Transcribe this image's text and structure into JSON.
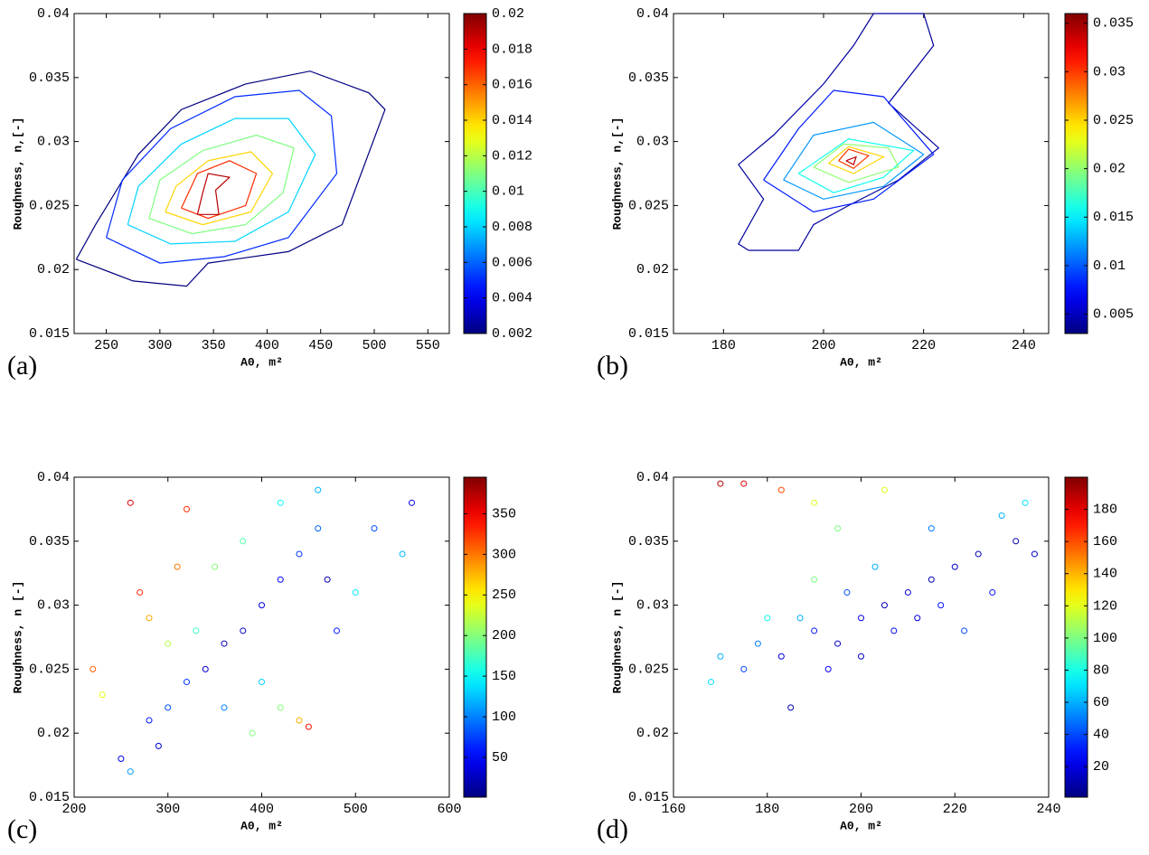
{
  "chart_data": [
    {
      "type": "contour",
      "label": "(a)",
      "xlabel": "A0, m²",
      "ylabel": "Roughness, n,[-]",
      "colormap": "jet",
      "xlim": [
        220,
        570
      ],
      "xticks": [
        250,
        300,
        350,
        400,
        450,
        500,
        550
      ],
      "ylim": [
        0.015,
        0.04
      ],
      "yticks": [
        0.015,
        0.02,
        0.025,
        0.03,
        0.035,
        0.04
      ],
      "clim": [
        0.002,
        0.02
      ],
      "cticks": [
        0.002,
        0.004,
        0.006,
        0.008,
        0.01,
        0.012,
        0.014,
        0.016,
        0.018,
        0.02
      ],
      "series": [
        {
          "level": 0.002,
          "x": [
            222,
            275,
            325,
            345,
            420,
            470,
            510,
            495,
            440,
            380,
            320,
            280,
            240,
            222
          ],
          "y": [
            0.0208,
            0.0191,
            0.0187,
            0.0205,
            0.0214,
            0.0235,
            0.0325,
            0.0338,
            0.0355,
            0.0345,
            0.0325,
            0.029,
            0.0235,
            0.0208
          ]
        },
        {
          "level": 0.005,
          "x": [
            250,
            300,
            360,
            420,
            465,
            460,
            430,
            370,
            310,
            265,
            250
          ],
          "y": [
            0.0225,
            0.0205,
            0.021,
            0.0225,
            0.0275,
            0.032,
            0.034,
            0.0335,
            0.031,
            0.027,
            0.0225
          ]
        },
        {
          "level": 0.008,
          "x": [
            270,
            310,
            370,
            420,
            445,
            420,
            370,
            320,
            280,
            270
          ],
          "y": [
            0.0235,
            0.022,
            0.0222,
            0.0245,
            0.029,
            0.0318,
            0.0318,
            0.0298,
            0.0265,
            0.0235
          ]
        },
        {
          "level": 0.011,
          "x": [
            290,
            330,
            380,
            415,
            425,
            390,
            340,
            300,
            290
          ],
          "y": [
            0.024,
            0.0228,
            0.0235,
            0.026,
            0.0295,
            0.0305,
            0.0293,
            0.027,
            0.024
          ]
        },
        {
          "level": 0.014,
          "x": [
            305,
            340,
            385,
            405,
            385,
            345,
            315,
            305
          ],
          "y": [
            0.0245,
            0.0235,
            0.0245,
            0.0275,
            0.0292,
            0.0285,
            0.0265,
            0.0245
          ]
        },
        {
          "level": 0.017,
          "x": [
            320,
            345,
            380,
            390,
            365,
            335,
            320
          ],
          "y": [
            0.0248,
            0.024,
            0.025,
            0.0275,
            0.0285,
            0.0275,
            0.0248
          ]
        },
        {
          "level": 0.019,
          "x": [
            335,
            355,
            352,
            365,
            345,
            340,
            335
          ],
          "y": [
            0.0243,
            0.0243,
            0.0262,
            0.0272,
            0.0275,
            0.026,
            0.0243
          ]
        }
      ]
    },
    {
      "type": "contour",
      "label": "(b)",
      "xlabel": "A0, m²",
      "ylabel": "Roughness, n,[-]",
      "colormap": "jet",
      "xlim": [
        170,
        245
      ],
      "xticks": [
        180,
        200,
        220,
        240
      ],
      "ylim": [
        0.015,
        0.04
      ],
      "yticks": [
        0.015,
        0.02,
        0.025,
        0.03,
        0.035,
        0.04
      ],
      "clim": [
        0.003,
        0.036
      ],
      "cticks": [
        0.005,
        0.01,
        0.015,
        0.02,
        0.025,
        0.03,
        0.035
      ],
      "series": [
        {
          "level": 0.004,
          "x": [
            185,
            195,
            198,
            205,
            215,
            223,
            213,
            222,
            220,
            210,
            206,
            200,
            190,
            183,
            188,
            183,
            185
          ],
          "y": [
            0.0215,
            0.0215,
            0.0235,
            0.025,
            0.027,
            0.0295,
            0.033,
            0.0375,
            0.04,
            0.04,
            0.0375,
            0.0345,
            0.0305,
            0.0282,
            0.0255,
            0.022,
            0.0215
          ]
        },
        {
          "level": 0.008,
          "x": [
            188,
            198,
            210,
            222,
            212,
            202,
            195,
            188
          ],
          "y": [
            0.027,
            0.0245,
            0.0255,
            0.029,
            0.0335,
            0.034,
            0.031,
            0.027
          ]
        },
        {
          "level": 0.012,
          "x": [
            192,
            200,
            212,
            220,
            210,
            198,
            192
          ],
          "y": [
            0.027,
            0.0255,
            0.0265,
            0.029,
            0.0315,
            0.0305,
            0.027
          ]
        },
        {
          "level": 0.016,
          "x": [
            195,
            202,
            212,
            218,
            205,
            195
          ],
          "y": [
            0.0275,
            0.026,
            0.0272,
            0.0293,
            0.0302,
            0.0275
          ]
        },
        {
          "level": 0.02,
          "x": [
            198,
            205,
            215,
            213,
            204,
            198
          ],
          "y": [
            0.028,
            0.0268,
            0.028,
            0.0295,
            0.0298,
            0.028
          ]
        },
        {
          "level": 0.025,
          "x": [
            201,
            206,
            212,
            205,
            201
          ],
          "y": [
            0.0283,
            0.0275,
            0.0288,
            0.0296,
            0.0283
          ]
        },
        {
          "level": 0.03,
          "x": [
            203,
            206,
            209,
            205,
            203
          ],
          "y": [
            0.0285,
            0.0279,
            0.0289,
            0.0294,
            0.0285
          ]
        },
        {
          "level": 0.034,
          "x": [
            204.5,
            206,
            206.5,
            204.5
          ],
          "y": [
            0.0285,
            0.0282,
            0.0288,
            0.0285
          ]
        }
      ]
    },
    {
      "type": "scatter",
      "label": "(c)",
      "xlabel": "A0, m²",
      "ylabel": "Roughness, n [-]",
      "colormap": "jet",
      "xlim": [
        200,
        600
      ],
      "xticks": [
        200,
        300,
        400,
        500,
        600
      ],
      "ylim": [
        0.015,
        0.04
      ],
      "yticks": [
        0.015,
        0.02,
        0.025,
        0.03,
        0.035,
        0.04
      ],
      "clim": [
        1,
        395
      ],
      "cticks": [
        50,
        100,
        150,
        200,
        250,
        300,
        350
      ],
      "x": [
        250,
        280,
        300,
        320,
        340,
        360,
        380,
        400,
        420,
        440,
        460,
        330,
        300,
        280,
        270,
        310,
        350,
        380,
        420,
        460,
        230,
        220,
        360,
        400,
        420,
        440,
        450,
        480,
        500,
        520,
        560,
        550,
        470,
        260,
        290,
        320,
        260,
        390
      ],
      "y": [
        0.018,
        0.021,
        0.022,
        0.024,
        0.025,
        0.027,
        0.028,
        0.03,
        0.032,
        0.034,
        0.036,
        0.028,
        0.027,
        0.029,
        0.031,
        0.033,
        0.033,
        0.035,
        0.038,
        0.039,
        0.023,
        0.025,
        0.022,
        0.024,
        0.022,
        0.021,
        0.0205,
        0.028,
        0.031,
        0.036,
        0.038,
        0.034,
        0.032,
        0.017,
        0.019,
        0.0375,
        0.038,
        0.02
      ],
      "c": [
        40,
        60,
        80,
        70,
        30,
        20,
        25,
        40,
        50,
        70,
        90,
        170,
        220,
        280,
        330,
        300,
        200,
        180,
        150,
        120,
        240,
        310,
        100,
        130,
        200,
        280,
        340,
        60,
        140,
        80,
        40,
        120,
        20,
        110,
        30,
        330,
        360,
        200
      ]
    },
    {
      "type": "scatter",
      "label": "(d)",
      "xlabel": "A0, m²",
      "ylabel": "Roughness, n [-]",
      "colormap": "jet",
      "xlim": [
        160,
        240
      ],
      "xticks": [
        160,
        180,
        200,
        220,
        240
      ],
      "ylim": [
        0.015,
        0.04
      ],
      "yticks": [
        0.015,
        0.02,
        0.025,
        0.03,
        0.035,
        0.04
      ],
      "clim": [
        1,
        200
      ],
      "cticks": [
        20,
        40,
        60,
        80,
        100,
        120,
        140,
        160,
        180
      ],
      "x": [
        168,
        170,
        175,
        178,
        180,
        183,
        185,
        187,
        190,
        190,
        193,
        195,
        197,
        200,
        200,
        203,
        205,
        207,
        210,
        212,
        215,
        217,
        220,
        222,
        225,
        228,
        230,
        233,
        235,
        237,
        170,
        175,
        183,
        190,
        195,
        205,
        215
      ],
      "y": [
        0.024,
        0.026,
        0.025,
        0.027,
        0.029,
        0.026,
        0.022,
        0.029,
        0.028,
        0.032,
        0.025,
        0.027,
        0.031,
        0.029,
        0.026,
        0.033,
        0.03,
        0.028,
        0.031,
        0.029,
        0.032,
        0.03,
        0.033,
        0.028,
        0.034,
        0.031,
        0.037,
        0.035,
        0.038,
        0.034,
        0.0395,
        0.0395,
        0.039,
        0.038,
        0.036,
        0.039,
        0.036
      ],
      "c": [
        70,
        60,
        40,
        50,
        80,
        20,
        10,
        60,
        30,
        100,
        25,
        15,
        40,
        20,
        15,
        60,
        10,
        25,
        15,
        20,
        10,
        30,
        15,
        40,
        10,
        30,
        60,
        10,
        70,
        15,
        190,
        180,
        160,
        120,
        100,
        120,
        50
      ]
    }
  ]
}
